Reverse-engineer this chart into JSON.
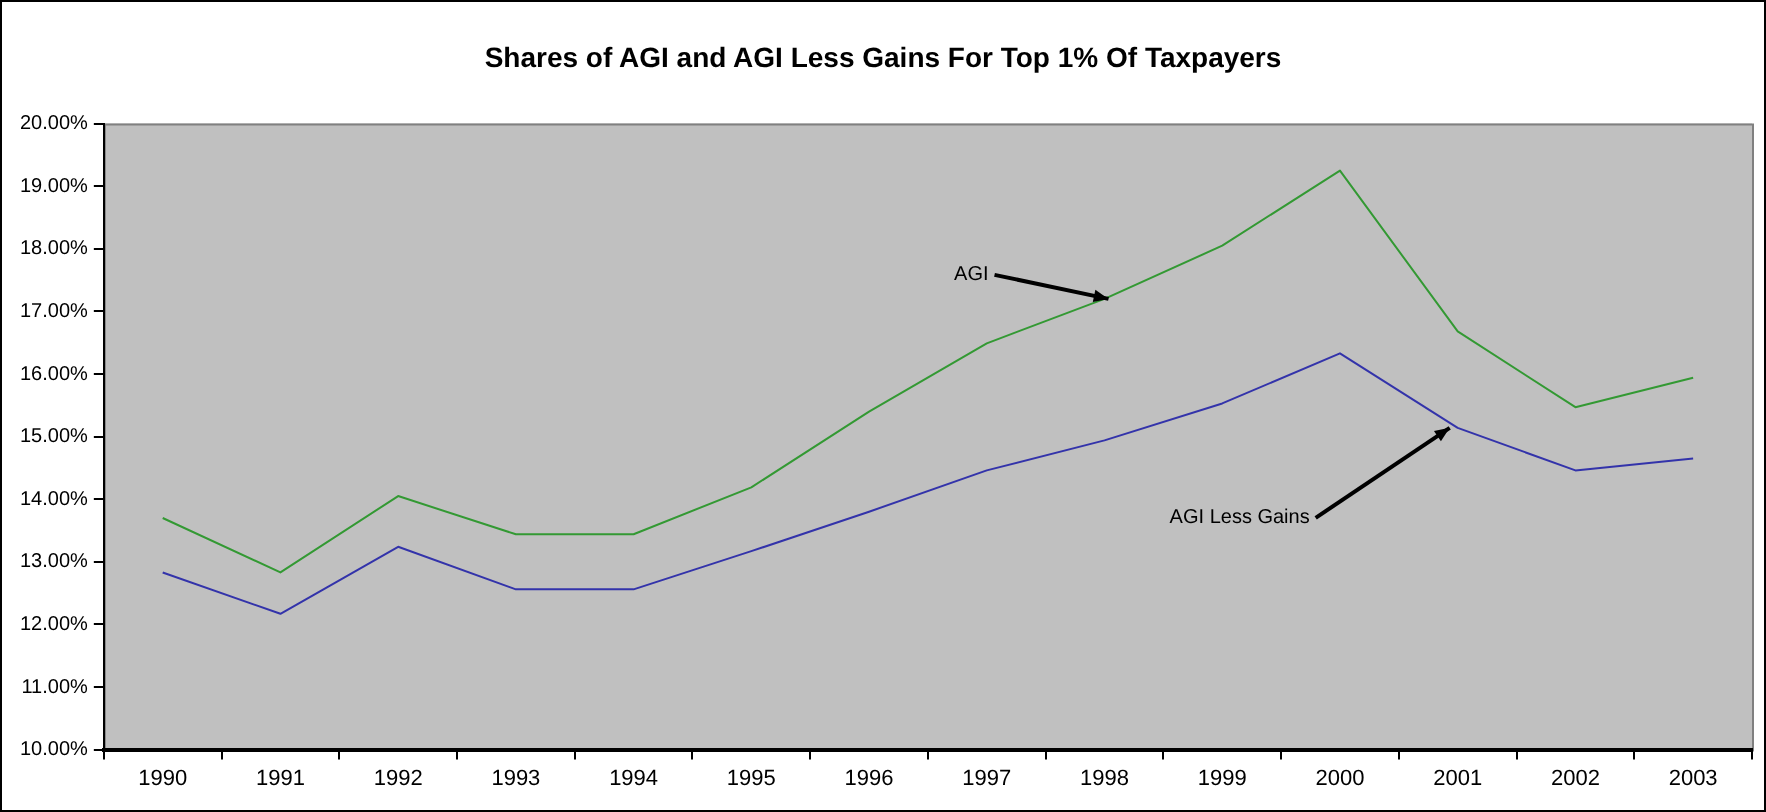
{
  "chart_data": {
    "type": "line",
    "title": "Shares of AGI and AGI Less Gains For Top 1% Of Taxpayers",
    "categories": [
      "1990",
      "1991",
      "1992",
      "1993",
      "1994",
      "1995",
      "1996",
      "1997",
      "1998",
      "1999",
      "2000",
      "2001",
      "2002",
      "2003"
    ],
    "series": [
      {
        "color": "#339933",
        "values": [
          13.7,
          12.83,
          14.05,
          13.44,
          13.44,
          14.19,
          15.4,
          16.49,
          17.2,
          18.05,
          19.25,
          16.68,
          15.47,
          15.94
        ]
      },
      {
        "color": "#3333aa",
        "values": [
          12.83,
          12.17,
          13.24,
          12.56,
          12.56,
          13.17,
          13.8,
          14.46,
          14.94,
          15.53,
          16.33,
          15.14,
          14.46,
          14.65
        ]
      }
    ],
    "ylim": [
      10,
      20
    ],
    "yticks": [
      {
        "value": 10,
        "label": "10.00%"
      },
      {
        "value": 11,
        "label": "11.00%"
      },
      {
        "value": 12,
        "label": "12.00%"
      },
      {
        "value": 13,
        "label": "13.00%"
      },
      {
        "value": 14,
        "label": "14.00%"
      },
      {
        "value": 15,
        "label": "15.00%"
      },
      {
        "value": 16,
        "label": "16.00%"
      },
      {
        "value": 17,
        "label": "17.00%"
      },
      {
        "value": 18,
        "label": "18.00%"
      },
      {
        "value": 19,
        "label": "19.00%"
      },
      {
        "value": 20,
        "label": "20.00%"
      }
    ],
    "annotations": [
      {
        "text": "AGI",
        "x": "1998",
        "y": 17.2
      },
      {
        "text": "AGI Less Gains",
        "x": "2001",
        "y": 15.14
      }
    ],
    "grid": false,
    "legend": false,
    "marker": "none",
    "line_style": "solid"
  }
}
